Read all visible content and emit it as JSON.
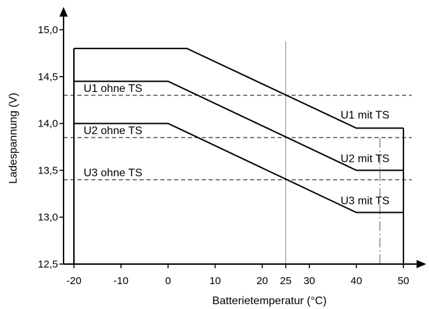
{
  "chart_data": {
    "type": "line",
    "xlabel": "Batterietemperatur (°C)",
    "ylabel": "Ladespannung (V)",
    "xlim": [
      -20,
      50
    ],
    "ylim": [
      12.5,
      15.0
    ],
    "x_ticks": [
      -20,
      -10,
      0,
      10,
      20,
      25,
      30,
      40,
      50
    ],
    "y_ticks": [
      12.5,
      13.0,
      13.5,
      14.0,
      14.5,
      15.0
    ],
    "x_tick_labels": [
      "-20",
      "-10",
      "0",
      "10",
      "20",
      "25",
      "30",
      "40",
      "50"
    ],
    "y_tick_labels": [
      "12,5",
      "13,0",
      "13,5",
      "14,0",
      "14,5",
      "15,0"
    ],
    "series": [
      {
        "name": "U1 mit TS",
        "x": [
          -20,
          4,
          40,
          50
        ],
        "y": [
          14.8,
          14.8,
          13.95,
          13.95
        ]
      },
      {
        "name": "U2 mit TS",
        "x": [
          -20,
          0,
          40,
          50
        ],
        "y": [
          14.45,
          14.45,
          13.5,
          13.5
        ]
      },
      {
        "name": "U3 mit TS",
        "x": [
          -20,
          0,
          40,
          50
        ],
        "y": [
          14.0,
          14.0,
          13.05,
          13.05
        ]
      }
    ],
    "reference_lines": [
      {
        "name": "U1 ohne TS",
        "y": 14.3
      },
      {
        "name": "U2 ohne TS",
        "y": 13.85
      },
      {
        "name": "U3 ohne TS",
        "y": 13.4
      }
    ],
    "vertical_markers": [
      {
        "x": 25,
        "style": "solid"
      },
      {
        "x": 45,
        "style": "dashdot"
      }
    ]
  }
}
